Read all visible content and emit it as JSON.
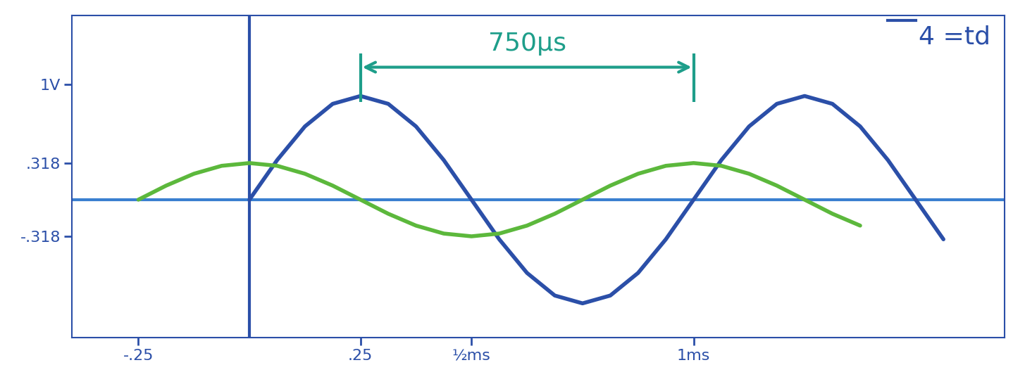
{
  "chart_data": {
    "type": "line",
    "x": [
      -0.25,
      -0.1875,
      -0.125,
      -0.0625,
      0,
      0.0625,
      0.125,
      0.1875,
      0.25,
      0.3125,
      0.375,
      0.4375,
      0.5,
      0.5625,
      0.625,
      0.6875,
      0.75,
      0.8125,
      0.875,
      0.9375,
      1,
      1.0625,
      1.125,
      1.1875,
      1.25,
      1.3125,
      1.375,
      1.4375,
      1.5,
      1.5625
    ],
    "series": [
      {
        "color": "#2b4fa8",
        "values": [
          null,
          null,
          null,
          null,
          0,
          0.344,
          0.636,
          0.832,
          0.9,
          0.832,
          0.636,
          0.344,
          0,
          -0.344,
          -0.636,
          -0.832,
          -0.9,
          -0.832,
          -0.636,
          -0.344,
          0,
          0.344,
          0.636,
          0.832,
          0.9,
          0.832,
          0.636,
          0.344,
          0,
          -0.344
        ]
      },
      {
        "color": "#5cb83c",
        "values": [
          0,
          0.122,
          0.225,
          0.294,
          0.318,
          0.294,
          0.225,
          0.122,
          0,
          -0.122,
          -0.225,
          -0.294,
          -0.318,
          -0.294,
          -0.225,
          -0.122,
          0,
          0.122,
          0.225,
          0.294,
          0.318,
          0.294,
          0.225,
          0.122,
          0,
          -0.122,
          -0.225,
          null,
          null,
          null
        ]
      }
    ],
    "xlim": [
      -0.4,
      1.7
    ],
    "ylim": [
      -1.2,
      1.6
    ],
    "xticks": [
      {
        "value": -0.25,
        "label": "-.25"
      },
      {
        "value": 0.25,
        "label": ".25"
      },
      {
        "value": 0.5,
        "label": "½ms"
      },
      {
        "value": 1,
        "label": "1ms"
      }
    ],
    "yticks": [
      {
        "value": -0.318,
        "label": "-.318"
      },
      {
        "value": 0.318,
        "label": ".318"
      },
      {
        "value": 1,
        "label": "1V"
      }
    ],
    "annotations": [
      {
        "text": "750μs",
        "x_start": 0.25,
        "x_end": 1,
        "y": 1.15,
        "color": "#1e9e8a"
      },
      {
        "text": "4 =td",
        "color": "#2b4fa8"
      }
    ]
  }
}
